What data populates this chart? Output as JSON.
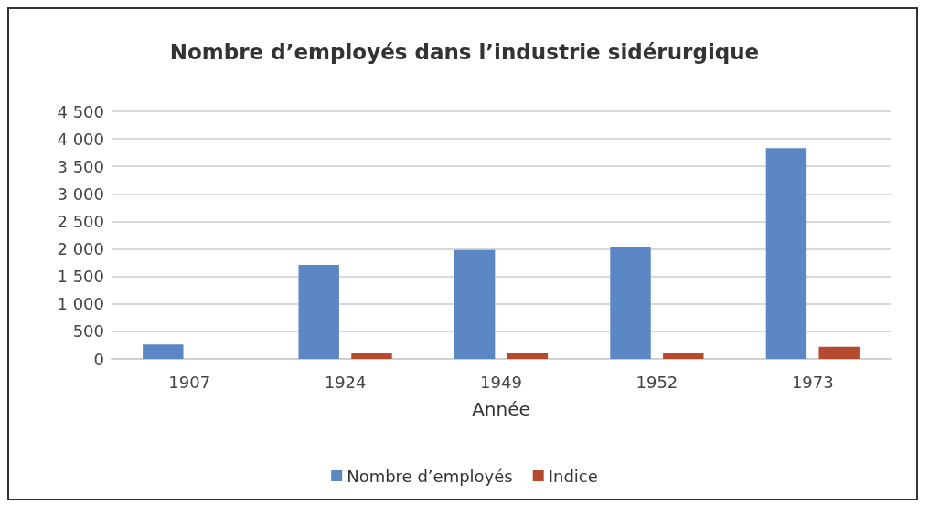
{
  "chart_data": {
    "type": "bar",
    "title": "Nombre d’employés dans l’industrie sidérurgique",
    "xlabel": "Année",
    "categories": [
      "1907",
      "1924",
      "1949",
      "1952",
      "1973"
    ],
    "series": [
      {
        "name": "Nombre d’employés",
        "color": "#5b87c5",
        "values": [
          260,
          1710,
          1980,
          2040,
          3830
        ]
      },
      {
        "name": "Indice",
        "color": "#b54a2f",
        "values": [
          null,
          100,
          100,
          100,
          220
        ]
      }
    ],
    "ylim": [
      0,
      4500
    ],
    "yticks": [
      0,
      500,
      {
        "value": 1000,
        "label": "1 000"
      },
      {
        "value": 1500,
        "label": "1 500"
      },
      {
        "value": 2000,
        "label": "2 000"
      },
      {
        "value": 2500,
        "label": "2 500"
      },
      {
        "value": 3000,
        "label": "3 000"
      },
      {
        "value": 3500,
        "label": "3 500"
      },
      {
        "value": 4000,
        "label": "4 000"
      },
      {
        "value": 4500,
        "label": "4 500"
      }
    ],
    "grid": "y",
    "legend": "bottom"
  }
}
